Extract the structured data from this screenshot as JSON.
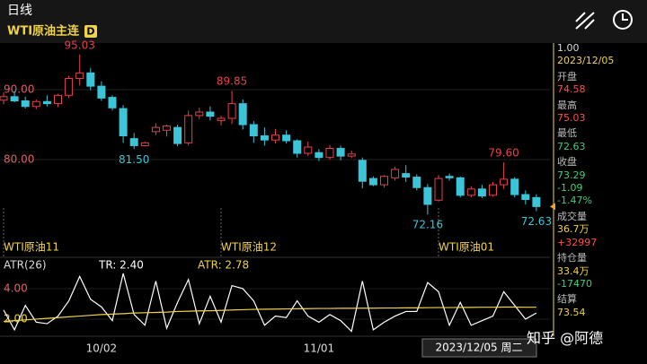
{
  "header": {
    "period": "日线",
    "symbol": "WTI原油主连",
    "badge": "D",
    "cursor_label": "2023/12/05 周二",
    "watermark": "知乎 @阿德"
  },
  "info_panel": {
    "scale": "1.00",
    "date": "2023/12/05",
    "rows": [
      {
        "label": "开盘",
        "values": [
          {
            "text": "74.58",
            "color": "#ff4d4d"
          }
        ]
      },
      {
        "label": "最高",
        "values": [
          {
            "text": "75.03",
            "color": "#ff4d4d"
          }
        ]
      },
      {
        "label": "最低",
        "values": [
          {
            "text": "72.63",
            "color": "#3ad07a"
          }
        ]
      },
      {
        "label": "收盘",
        "values": [
          {
            "text": "73.29",
            "color": "#3ad07a"
          },
          {
            "text": "-1.09",
            "color": "#3ad07a"
          },
          {
            "text": "-1.47%",
            "color": "#3ad07a"
          }
        ]
      },
      {
        "label": "成交量",
        "values": [
          {
            "text": "36.7万",
            "color": "#f0d34a"
          },
          {
            "text": "+32997",
            "color": "#ff4d4d"
          }
        ]
      },
      {
        "label": "持仓量",
        "values": [
          {
            "text": "33.4万",
            "color": "#f0d34a"
          },
          {
            "text": "-17470",
            "color": "#3ad07a"
          }
        ]
      },
      {
        "label": "结算",
        "values": [
          {
            "text": "73.54",
            "color": "#f0d34a"
          }
        ]
      }
    ]
  },
  "chart_data": [
    {
      "type": "candlestick",
      "up_color": "#e8404a",
      "down_color": "#3cc4d8",
      "open": [
        88.5,
        89.0,
        88.4,
        87.6,
        88.3,
        88.0,
        89.2,
        91.6,
        92.4,
        90.5,
        88.9,
        87.3,
        83.0,
        82.0,
        84.0,
        84.2,
        84.6,
        82.4,
        86.3,
        86.8,
        85.6,
        85.9,
        88.0,
        85.0,
        83.4,
        82.8,
        83.5,
        82.7,
        80.9,
        81.0,
        80.3,
        81.6,
        80.5,
        79.9,
        77.3,
        76.4,
        77.4,
        78.0,
        77.5,
        76.0,
        74.2,
        77.6,
        77.4,
        74.9,
        75.8,
        74.9,
        76.4,
        77.2,
        75.0,
        74.58
      ],
      "high": [
        89.6,
        89.8,
        89.0,
        88.6,
        89.2,
        89.4,
        92.0,
        95.03,
        93.1,
        91.2,
        89.2,
        87.8,
        83.8,
        82.6,
        85.2,
        85.0,
        85.0,
        87.0,
        87.4,
        87.6,
        86.3,
        89.85,
        88.6,
        85.5,
        84.6,
        84.4,
        84.2,
        82.9,
        82.6,
        81.5,
        82.1,
        82.0,
        81.3,
        80.3,
        77.6,
        77.8,
        79.0,
        79.2,
        77.9,
        76.5,
        77.8,
        78.0,
        77.6,
        76.2,
        76.4,
        76.8,
        79.6,
        77.5,
        75.6,
        75.03
      ],
      "low": [
        87.9,
        88.2,
        87.3,
        87.2,
        87.6,
        87.5,
        88.8,
        90.6,
        89.9,
        88.4,
        87.0,
        82.4,
        81.5,
        81.9,
        83.5,
        83.3,
        81.9,
        82.0,
        85.8,
        85.6,
        84.9,
        85.1,
        84.3,
        82.4,
        82.0,
        82.3,
        82.3,
        80.3,
        80.5,
        79.8,
        80.0,
        79.9,
        80.2,
        75.9,
        76.2,
        76.0,
        77.0,
        76.8,
        75.6,
        72.16,
        74.0,
        77.0,
        74.6,
        74.6,
        74.5,
        74.7,
        75.8,
        74.6,
        73.6,
        72.63
      ],
      "close": [
        89.0,
        88.4,
        87.6,
        88.3,
        88.0,
        89.2,
        91.6,
        92.4,
        90.5,
        88.8,
        87.4,
        83.4,
        82.0,
        82.4,
        84.6,
        84.8,
        82.3,
        86.3,
        86.8,
        86.2,
        85.9,
        88.0,
        85.0,
        83.4,
        82.8,
        83.5,
        82.7,
        80.9,
        81.8,
        80.3,
        81.6,
        80.5,
        80.8,
        76.9,
        76.4,
        77.6,
        78.6,
        77.5,
        76.0,
        73.6,
        77.3,
        77.4,
        74.9,
        75.8,
        74.8,
        76.4,
        77.2,
        75.0,
        74.3,
        73.29
      ],
      "ylim": [
        68.85,
        96.67
      ],
      "yticks": [
        {
          "value": 90,
          "label": "90.00"
        },
        {
          "value": 80,
          "label": "80.00"
        }
      ],
      "annotations": [
        {
          "label": "95.03",
          "index": 7,
          "value": 95.03,
          "color": "#e8404a"
        },
        {
          "label": "81.50",
          "index": 12,
          "value": 81.5,
          "color": "#3cc4d8"
        },
        {
          "label": "89.85",
          "index": 21,
          "value": 89.85,
          "color": "#e8404a"
        },
        {
          "label": "72.16",
          "index": 39,
          "value": 72.16,
          "color": "#3cc4d8"
        },
        {
          "label": "79.60",
          "index": 46,
          "value": 79.6,
          "color": "#e8404a"
        },
        {
          "label": "72.63",
          "index": 49,
          "value": 72.63,
          "color": "#3cc4d8"
        }
      ],
      "contracts": [
        {
          "label": "WTI原油11",
          "index": 0
        },
        {
          "label": "WTI原油12",
          "index": 20
        },
        {
          "label": "WTI原油01",
          "index": 40
        }
      ]
    },
    {
      "type": "line",
      "title": "ATR(26)",
      "categories": [
        null,
        null,
        null,
        null,
        null,
        null,
        null,
        null,
        null,
        "10/02",
        null,
        null,
        null,
        null,
        null,
        null,
        null,
        null,
        null,
        null,
        null,
        null,
        null,
        null,
        null,
        null,
        null,
        null,
        null,
        "11/01",
        null,
        null,
        null,
        null,
        null,
        null,
        null,
        null,
        null,
        null,
        null,
        null,
        null,
        null,
        null,
        null,
        null,
        null,
        null,
        null
      ],
      "series": [
        {
          "name": "TR: 2.40",
          "color": "#ffffff",
          "values": [
            2.6,
            1.3,
            2.9,
            1.8,
            1.7,
            2.2,
            3.2,
            4.8,
            3.3,
            2.8,
            1.9,
            5.0,
            2.3,
            1.6,
            4.5,
            1.4,
            3.1,
            4.6,
            1.7,
            3.5,
            1.8,
            4.2,
            4.0,
            3.2,
            1.6,
            2.2,
            2.1,
            3.2,
            2.2,
            1.8,
            2.3,
            1.9,
            1.2,
            4.5,
            1.3,
            1.8,
            2.2,
            2.5,
            2.5,
            4.4,
            3.8,
            1.6,
            3.1,
            1.6,
            1.9,
            2.2,
            3.8,
            2.9,
            2.0,
            2.4
          ]
        },
        {
          "name": "ATR: 2.78",
          "color": "#f0d34a",
          "values": [
            1.85,
            1.9,
            1.95,
            2.0,
            2.05,
            2.1,
            2.15,
            2.2,
            2.25,
            2.3,
            2.33,
            2.36,
            2.4,
            2.42,
            2.44,
            2.46,
            2.5,
            2.52,
            2.54,
            2.55,
            2.57,
            2.6,
            2.62,
            2.64,
            2.65,
            2.66,
            2.67,
            2.68,
            2.69,
            2.7,
            2.7,
            2.71,
            2.71,
            2.72,
            2.72,
            2.73,
            2.73,
            2.74,
            2.74,
            2.75,
            2.76,
            2.76,
            2.77,
            2.77,
            2.78,
            2.78,
            2.79,
            2.79,
            2.78,
            2.78
          ]
        }
      ],
      "ylim": [
        0.88,
        5.88
      ],
      "yticks": [
        {
          "value": 4,
          "label": "4.00"
        },
        {
          "value": 2,
          "label": "2.00"
        }
      ]
    }
  ]
}
